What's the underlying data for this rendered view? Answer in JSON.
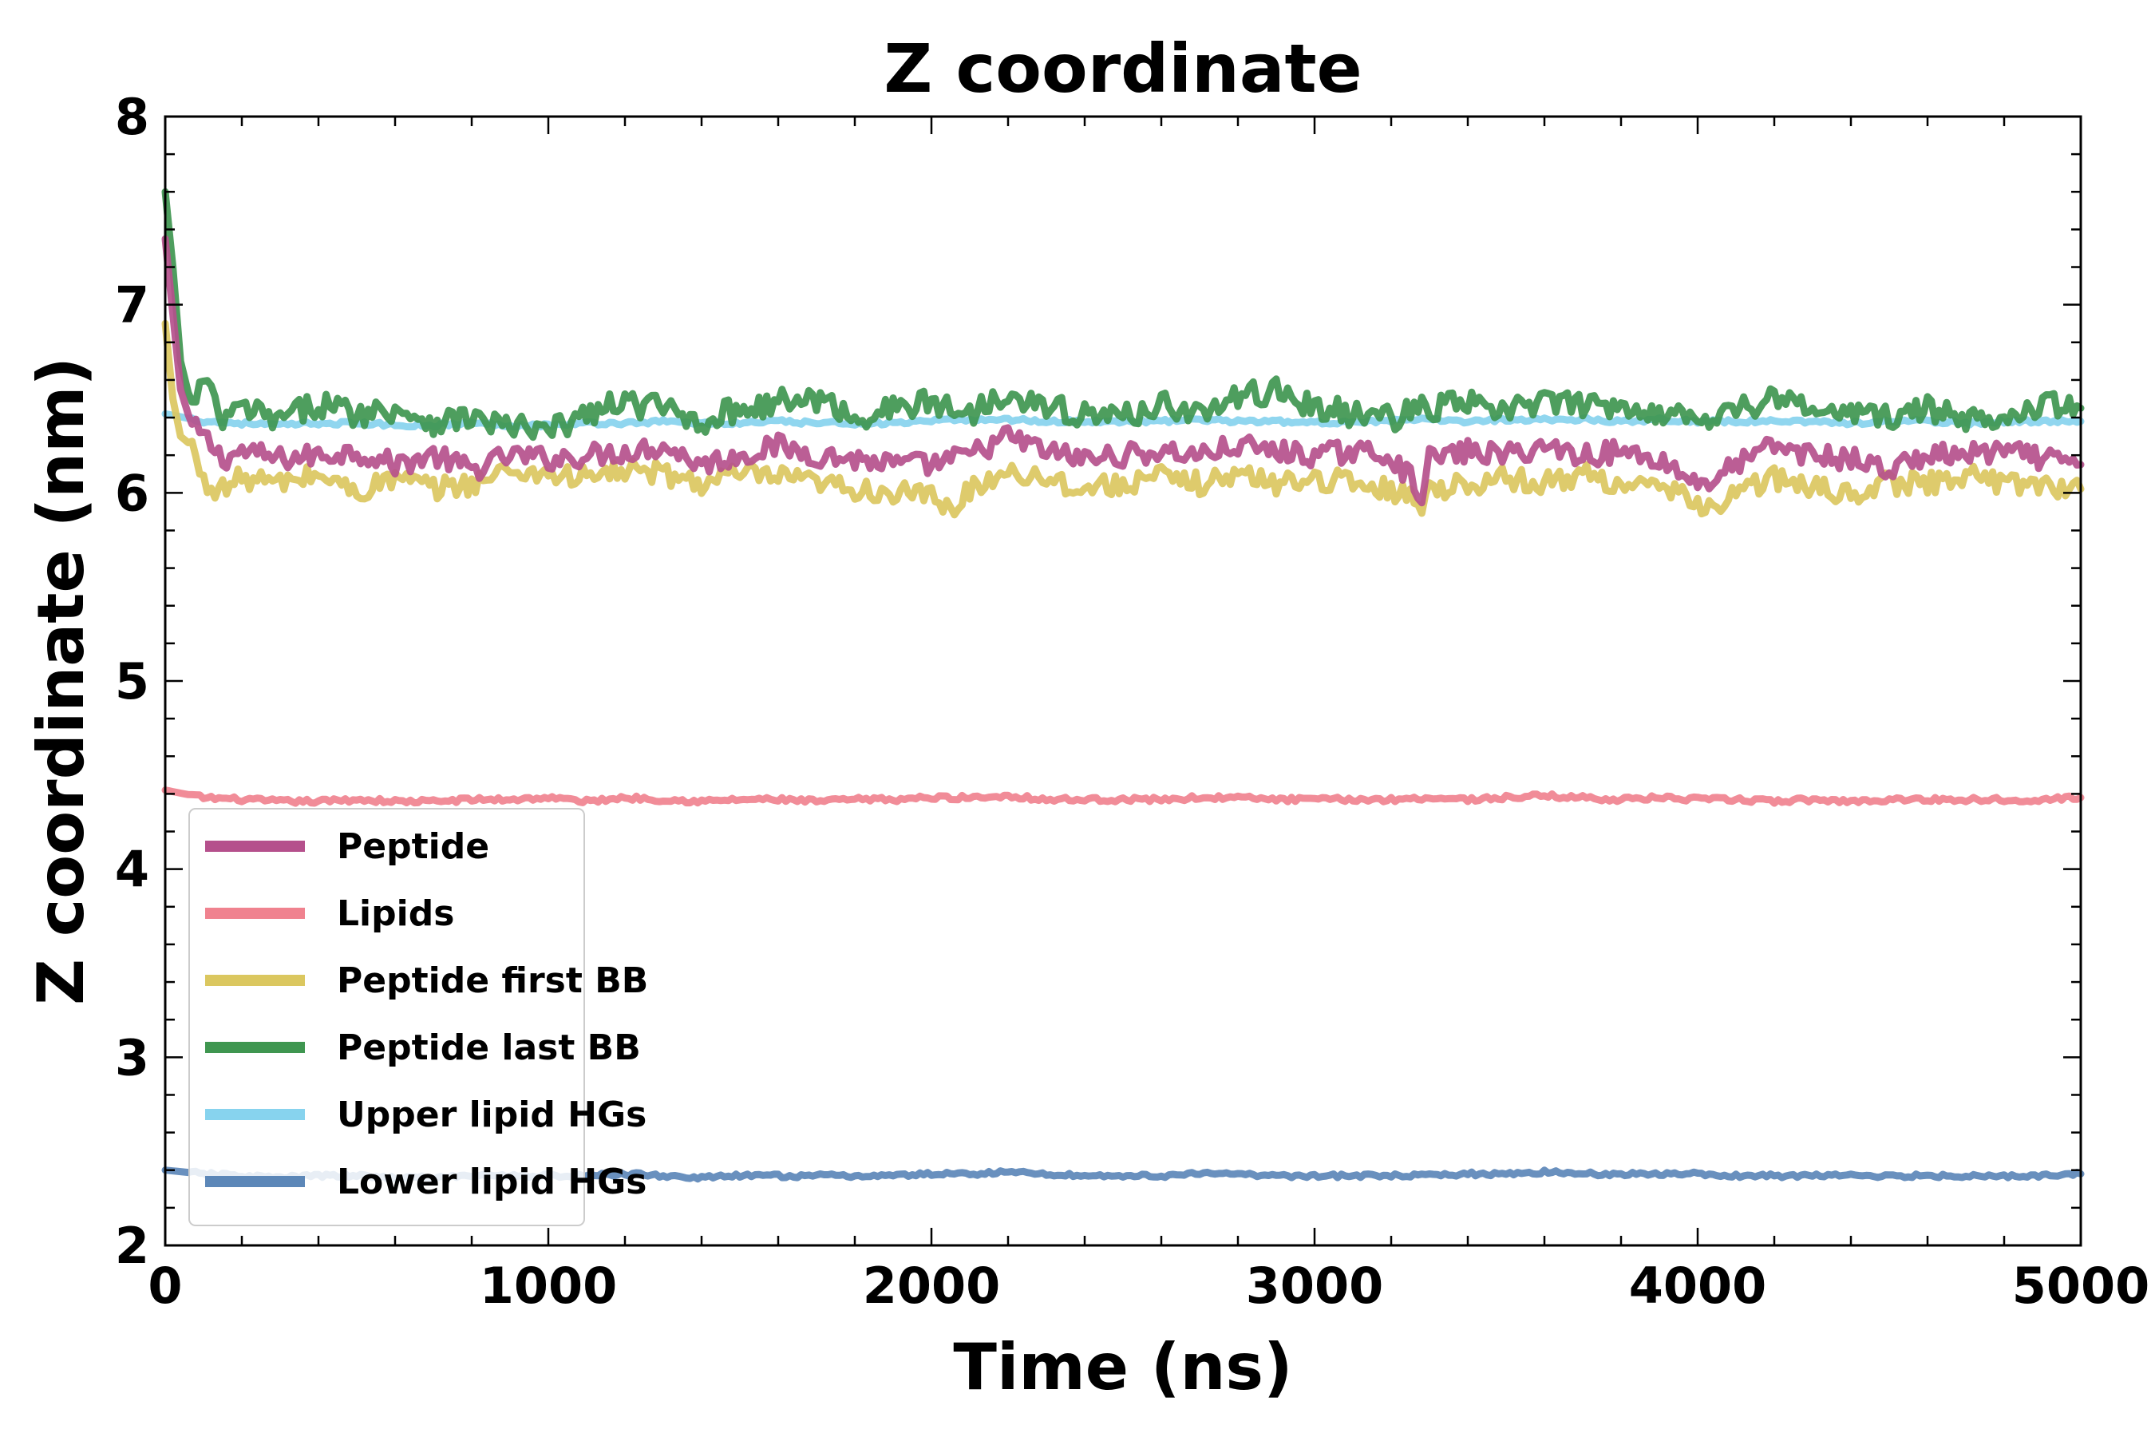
{
  "chart_data": {
    "type": "line",
    "title": "Z coordinate",
    "xlabel": "Time (ns)",
    "ylabel": "Z coordinate (nm)",
    "xlim": [
      0,
      5000
    ],
    "ylim": [
      2,
      8
    ],
    "x_ticks": [
      0,
      1000,
      2000,
      3000,
      4000,
      5000
    ],
    "y_ticks": [
      2,
      3,
      4,
      5,
      6,
      7,
      8
    ],
    "x_minor_step": 200,
    "y_minor_step": 0.2,
    "grid": false,
    "legend_position": "lower-left",
    "series": [
      {
        "name": "Peptide",
        "color": "#b5508c",
        "x": [
          0,
          20,
          40,
          70,
          100,
          150,
          200,
          300,
          400,
          500,
          600,
          700,
          800,
          900,
          1000,
          1100,
          1200,
          1300,
          1400,
          1500,
          1600,
          1700,
          1800,
          1900,
          2000,
          2100,
          2200,
          2300,
          2400,
          2500,
          2600,
          2700,
          2800,
          2900,
          3000,
          3100,
          3200,
          3280,
          3300,
          3400,
          3500,
          3600,
          3700,
          3800,
          3900,
          4000,
          4050,
          4100,
          4200,
          4300,
          4400,
          4500,
          4600,
          4700,
          4800,
          4900,
          5000
        ],
        "values": [
          7.35,
          6.95,
          6.55,
          6.35,
          6.3,
          6.18,
          6.22,
          6.18,
          6.2,
          6.22,
          6.15,
          6.2,
          6.12,
          6.2,
          6.18,
          6.2,
          6.22,
          6.25,
          6.15,
          6.2,
          6.25,
          6.2,
          6.18,
          6.15,
          6.15,
          6.2,
          6.3,
          6.22,
          6.18,
          6.2,
          6.22,
          6.2,
          6.25,
          6.22,
          6.2,
          6.22,
          6.2,
          6.0,
          6.18,
          6.22,
          6.2,
          6.25,
          6.2,
          6.22,
          6.18,
          6.05,
          6.08,
          6.15,
          6.25,
          6.2,
          6.18,
          6.12,
          6.2,
          6.2,
          6.22,
          6.18,
          6.15
        ]
      },
      {
        "name": "Lipids",
        "color": "#f0828f",
        "x": [
          0,
          100,
          200,
          300,
          400,
          500,
          600,
          700,
          800,
          900,
          1000,
          1100,
          1200,
          1300,
          1400,
          1500,
          1600,
          1700,
          1800,
          1900,
          2000,
          2100,
          2200,
          2300,
          2400,
          2500,
          2600,
          2700,
          2800,
          2900,
          3000,
          3100,
          3200,
          3300,
          3400,
          3500,
          3600,
          3700,
          3800,
          3900,
          4000,
          4100,
          4200,
          4300,
          4400,
          4500,
          4600,
          4700,
          4800,
          4900,
          5000
        ],
        "values": [
          4.42,
          4.38,
          4.37,
          4.36,
          4.36,
          4.37,
          4.36,
          4.36,
          4.37,
          4.37,
          4.38,
          4.36,
          4.38,
          4.37,
          4.36,
          4.37,
          4.37,
          4.36,
          4.37,
          4.37,
          4.38,
          4.38,
          4.39,
          4.37,
          4.37,
          4.37,
          4.37,
          4.38,
          4.38,
          4.37,
          4.37,
          4.37,
          4.37,
          4.38,
          4.37,
          4.38,
          4.39,
          4.38,
          4.37,
          4.38,
          4.37,
          4.37,
          4.36,
          4.37,
          4.36,
          4.37,
          4.37,
          4.37,
          4.37,
          4.37,
          4.38
        ]
      },
      {
        "name": "Peptide first BB",
        "color": "#dbc75f",
        "x": [
          0,
          20,
          40,
          70,
          100,
          150,
          200,
          300,
          400,
          500,
          600,
          700,
          800,
          900,
          1000,
          1100,
          1200,
          1300,
          1400,
          1500,
          1600,
          1700,
          1800,
          1900,
          2000,
          2050,
          2100,
          2200,
          2300,
          2400,
          2500,
          2600,
          2700,
          2800,
          2900,
          3000,
          3100,
          3200,
          3280,
          3300,
          3400,
          3500,
          3600,
          3700,
          3800,
          3900,
          4000,
          4050,
          4100,
          4200,
          4300,
          4400,
          4500,
          4600,
          4700,
          4800,
          4900,
          5000
        ],
        "values": [
          6.9,
          6.5,
          6.3,
          6.25,
          6.05,
          6.02,
          6.08,
          6.05,
          6.1,
          6.0,
          6.08,
          6.02,
          6.05,
          6.12,
          6.1,
          6.08,
          6.12,
          6.1,
          6.05,
          6.1,
          6.08,
          6.05,
          6.02,
          6.0,
          5.98,
          5.9,
          6.02,
          6.12,
          6.08,
          6.02,
          6.05,
          6.08,
          6.05,
          6.1,
          6.05,
          6.08,
          6.05,
          6.02,
          5.95,
          6.02,
          6.05,
          6.08,
          6.05,
          6.1,
          6.05,
          6.02,
          5.95,
          5.92,
          6.0,
          6.08,
          6.02,
          6.0,
          6.05,
          6.05,
          6.1,
          6.05,
          6.05,
          6.02
        ]
      },
      {
        "name": "Peptide last BB",
        "color": "#3f9650",
        "x": [
          0,
          20,
          40,
          70,
          100,
          150,
          200,
          300,
          400,
          500,
          600,
          700,
          800,
          900,
          1000,
          1100,
          1200,
          1300,
          1400,
          1500,
          1600,
          1700,
          1800,
          1900,
          2000,
          2100,
          2200,
          2300,
          2400,
          2500,
          2600,
          2700,
          2800,
          2900,
          3000,
          3100,
          3200,
          3300,
          3400,
          3500,
          3600,
          3700,
          3800,
          3900,
          4000,
          4100,
          4200,
          4300,
          4400,
          4500,
          4600,
          4700,
          4800,
          4900,
          5000
        ],
        "values": [
          7.6,
          7.2,
          6.7,
          6.45,
          6.6,
          6.38,
          6.45,
          6.38,
          6.48,
          6.42,
          6.45,
          6.38,
          6.4,
          6.35,
          6.32,
          6.42,
          6.48,
          6.45,
          6.38,
          6.45,
          6.48,
          6.5,
          6.4,
          6.45,
          6.48,
          6.42,
          6.55,
          6.45,
          6.42,
          6.4,
          6.48,
          6.42,
          6.5,
          6.55,
          6.45,
          6.42,
          6.4,
          6.45,
          6.48,
          6.42,
          6.5,
          6.45,
          6.48,
          6.42,
          6.4,
          6.45,
          6.5,
          6.45,
          6.42,
          6.4,
          6.45,
          6.38,
          6.42,
          6.48,
          6.45
        ]
      },
      {
        "name": "Upper lipid HGs",
        "color": "#87d3ee",
        "x": [
          0,
          100,
          200,
          300,
          400,
          500,
          600,
          700,
          800,
          900,
          1000,
          1100,
          1200,
          1300,
          1400,
          1500,
          1600,
          1700,
          1800,
          1900,
          2000,
          2100,
          2200,
          2300,
          2400,
          2500,
          2600,
          2700,
          2800,
          2900,
          3000,
          3100,
          3200,
          3300,
          3400,
          3500,
          3600,
          3700,
          3800,
          3900,
          4000,
          4100,
          4200,
          4300,
          4400,
          4500,
          4600,
          4700,
          4800,
          4900,
          5000
        ],
        "values": [
          6.42,
          6.38,
          6.37,
          6.36,
          6.37,
          6.37,
          6.36,
          6.36,
          6.37,
          6.36,
          6.36,
          6.37,
          6.37,
          6.38,
          6.37,
          6.37,
          6.38,
          6.37,
          6.37,
          6.37,
          6.38,
          6.39,
          6.39,
          6.38,
          6.38,
          6.38,
          6.38,
          6.39,
          6.38,
          6.38,
          6.37,
          6.38,
          6.38,
          6.39,
          6.38,
          6.39,
          6.39,
          6.39,
          6.38,
          6.39,
          6.38,
          6.38,
          6.38,
          6.38,
          6.37,
          6.38,
          6.38,
          6.37,
          6.38,
          6.38,
          6.38
        ]
      },
      {
        "name": "Lower lipid HGs",
        "color": "#5c87b8",
        "x": [
          0,
          100,
          200,
          300,
          400,
          500,
          600,
          700,
          800,
          900,
          1000,
          1100,
          1200,
          1300,
          1400,
          1500,
          1600,
          1700,
          1800,
          1900,
          2000,
          2100,
          2200,
          2300,
          2400,
          2500,
          2600,
          2700,
          2800,
          2900,
          3000,
          3100,
          3200,
          3300,
          3400,
          3500,
          3600,
          3700,
          3800,
          3900,
          4000,
          4100,
          4200,
          4300,
          4400,
          4500,
          4600,
          4700,
          4800,
          4900,
          5000
        ],
        "values": [
          2.4,
          2.38,
          2.37,
          2.36,
          2.37,
          2.37,
          2.36,
          2.36,
          2.37,
          2.37,
          2.37,
          2.37,
          2.38,
          2.37,
          2.36,
          2.37,
          2.37,
          2.37,
          2.37,
          2.37,
          2.38,
          2.38,
          2.39,
          2.38,
          2.37,
          2.37,
          2.37,
          2.38,
          2.38,
          2.37,
          2.37,
          2.37,
          2.37,
          2.37,
          2.38,
          2.38,
          2.39,
          2.38,
          2.38,
          2.38,
          2.38,
          2.37,
          2.37,
          2.37,
          2.37,
          2.37,
          2.37,
          2.37,
          2.37,
          2.37,
          2.38
        ]
      }
    ]
  }
}
